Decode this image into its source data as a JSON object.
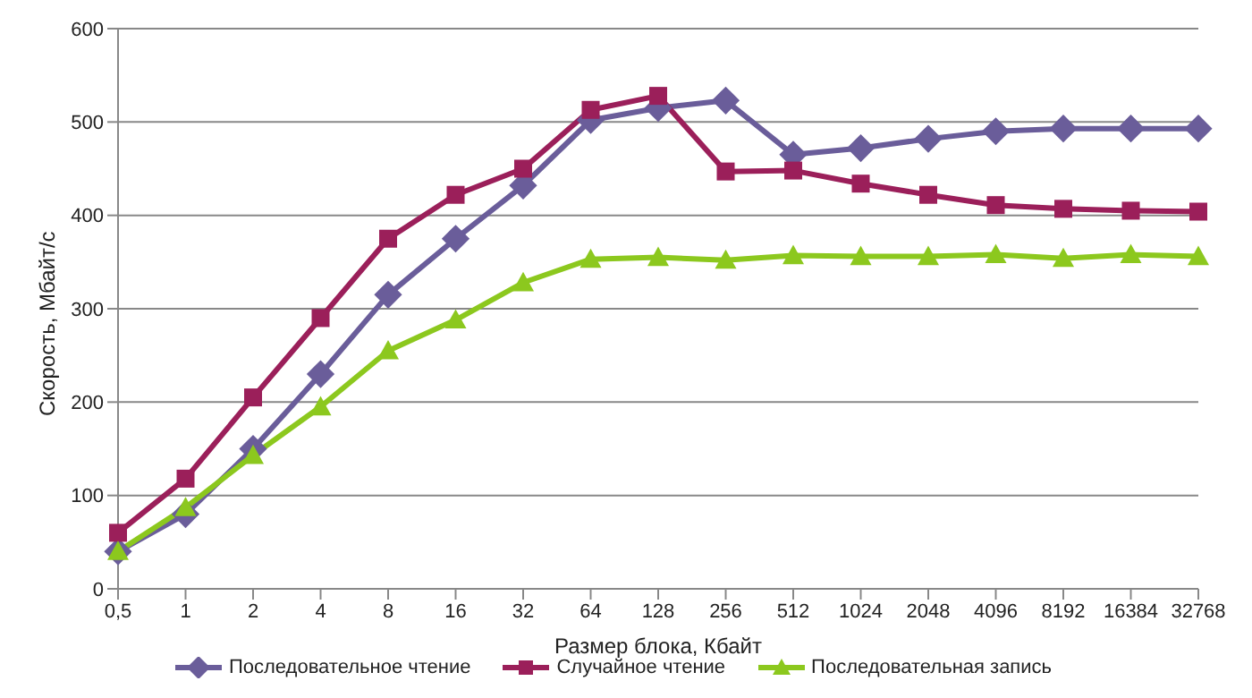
{
  "chart_data": {
    "type": "line",
    "xlabel": "Размер блока, Кбайт",
    "ylabel": "Скорость, Мбайт/с",
    "categories": [
      "0,5",
      "1",
      "2",
      "4",
      "8",
      "16",
      "32",
      "64",
      "128",
      "256",
      "512",
      "1024",
      "2048",
      "4096",
      "8192",
      "16384",
      "32768"
    ],
    "series": [
      {
        "name": "Последовательное чтение",
        "color": "#6a5d9a",
        "marker": "diamond",
        "values": [
          40,
          80,
          150,
          230,
          315,
          375,
          432,
          502,
          515,
          523,
          465,
          472,
          482,
          490,
          493,
          493,
          493
        ]
      },
      {
        "name": "Случайное чтение",
        "color": "#9b1f5a",
        "marker": "square",
        "values": [
          60,
          118,
          205,
          290,
          375,
          422,
          450,
          513,
          528,
          447,
          448,
          434,
          422,
          411,
          407,
          405,
          404
        ]
      },
      {
        "name": "Последовательная запись",
        "color": "#8cc81e",
        "marker": "triangle",
        "values": [
          40,
          87,
          143,
          195,
          255,
          288,
          328,
          353,
          355,
          352,
          357,
          356,
          356,
          358,
          354,
          358,
          356
        ]
      }
    ],
    "ylim": [
      0,
      600
    ],
    "yticks": [
      0,
      100,
      200,
      300,
      400,
      500,
      600
    ],
    "grid": "y",
    "legend": "bottom",
    "line_style": "solid"
  }
}
